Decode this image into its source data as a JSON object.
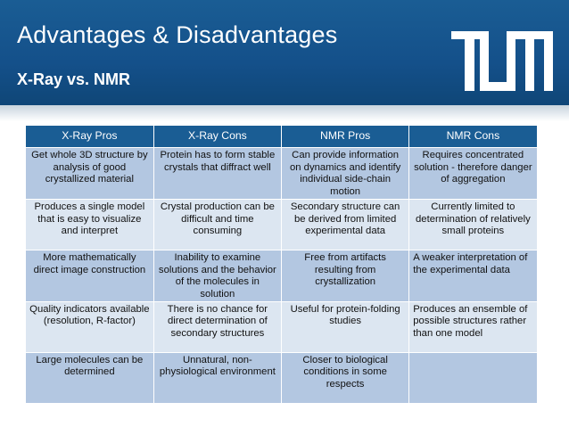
{
  "slide": {
    "title": "Advantages & Disadvantages",
    "subtitle": "X-Ray vs. NMR"
  },
  "logo": {
    "icon": "tum-logo",
    "color": "#ffffff"
  },
  "table": {
    "headers": [
      "X-Ray Pros",
      "X-Ray Cons",
      "NMR Pros",
      "NMR Cons"
    ],
    "rows": [
      [
        "Get whole 3D structure by analysis of good crystallized material",
        "Protein has to form stable crystals that diffract well",
        "Can provide information on dynamics and identify individual side-chain motion",
        "Requires concentrated solution - therefore danger of aggregation"
      ],
      [
        "Produces a single model that is easy to visualize and interpret",
        "Crystal production can be difficult and time consuming",
        "Secondary structure can be derived from limited experimental data",
        "Currently limited to determination of relatively small proteins"
      ],
      [
        "More mathematically direct image construction",
        "Inability to examine solutions and the behavior of the molecules in solution",
        "Free from artifacts resulting from crystallization",
        "A weaker interpretation of the experimental data"
      ],
      [
        "Quality indicators available (resolution, R-factor)",
        "There is no chance for direct determination of secondary structures",
        "Useful for protein-folding studies",
        "Produces an ensemble of possible structures rather than one model"
      ],
      [
        "Large molecules can be determined",
        "Unnatural, non-physiological environment",
        "Closer to biological conditions in some respects",
        ""
      ]
    ]
  },
  "colors": {
    "header_blue": "#1a5d94",
    "row_dark": "#b3c7e1",
    "row_light": "#dce6f1"
  }
}
